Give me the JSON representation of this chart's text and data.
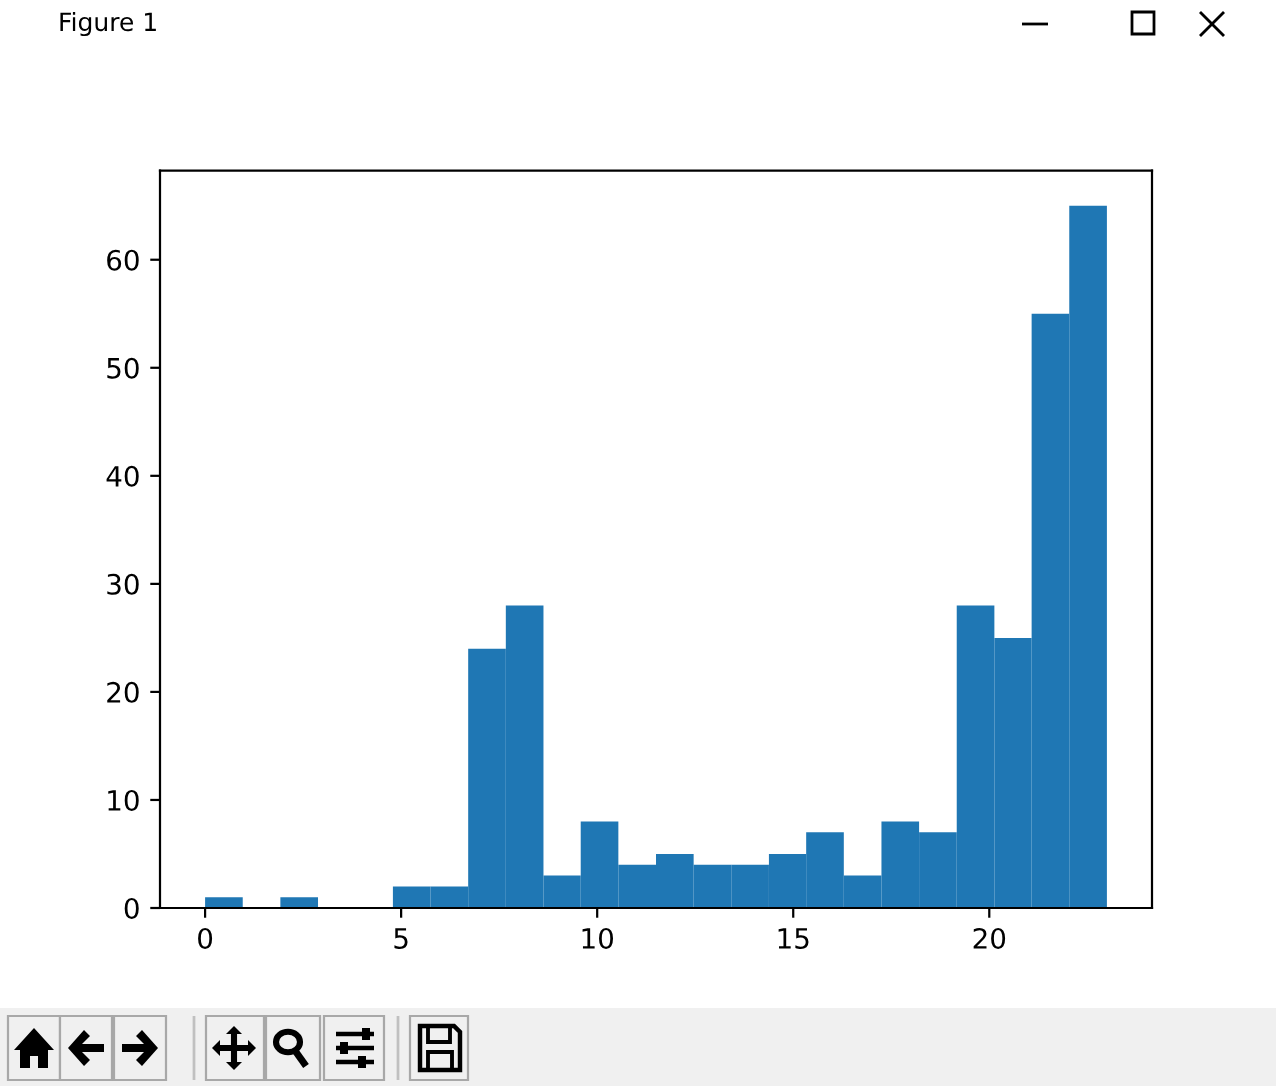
{
  "chart_data": {
    "type": "histogram",
    "annotations": [
      "Figure 1"
    ],
    "bins": [
      0,
      0.96,
      1.92,
      2.88,
      3.83,
      4.79,
      5.75,
      6.71,
      7.67,
      8.63,
      9.58,
      10.54,
      11.5,
      12.46,
      13.42,
      14.38,
      15.33,
      16.29,
      17.25,
      18.21,
      19.17,
      20.13,
      21.08,
      22.04,
      23
    ],
    "values": [
      1,
      0,
      1,
      0,
      0,
      2,
      2,
      24,
      28,
      3,
      8,
      4,
      5,
      4,
      4,
      5,
      7,
      3,
      8,
      7,
      28,
      25,
      55,
      65
    ],
    "color": "#1f77b4",
    "xlim": [
      -1.15,
      24.15
    ],
    "ylim": [
      0,
      68.25
    ],
    "xticks": [
      0,
      5,
      10,
      15,
      20
    ],
    "yticks": [
      0,
      10,
      20,
      30,
      40,
      50,
      60
    ]
  }
}
